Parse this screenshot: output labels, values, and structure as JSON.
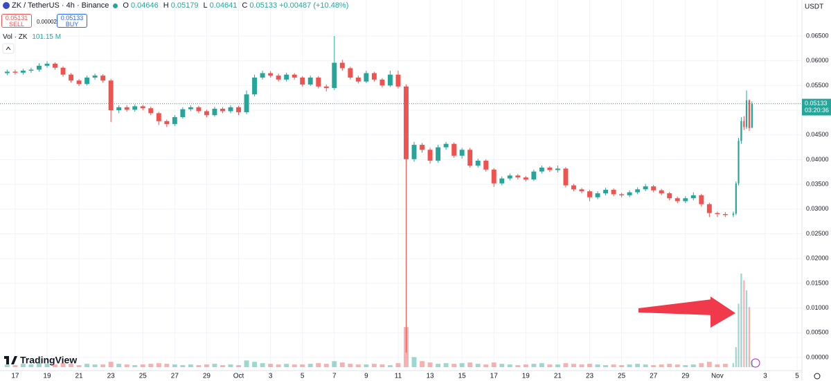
{
  "header": {
    "symbol": "ZK / TetherUS · 4h · Binance",
    "ohlc_labels": [
      "O",
      "H",
      "L",
      "C"
    ],
    "change": "+0.00487 (+10.48%)",
    "sell_price": 0.05131,
    "sell_label": "SELL",
    "spread": 2e-05,
    "buy_label": "BUY",
    "volume_label": "Vol · ZK",
    "volume_value": "101.15 M",
    "currency": "USDT",
    "countdown": "03:20:36",
    "logo": "TradingView"
  },
  "chart_data": {
    "type": "candlestick",
    "up_color": "#26a69a",
    "down_color": "#ef5350",
    "grid": true,
    "x": [
      -0.5,
      0,
      0.5,
      1,
      1.5,
      2,
      2.5,
      3,
      3.5,
      4,
      4.5,
      5,
      5.5,
      6,
      6.5,
      7,
      7.5,
      8,
      8.5,
      9,
      9.5,
      10,
      10.5,
      11,
      11.5,
      12,
      12.5,
      13,
      13.5,
      14,
      14.5,
      15,
      15.5,
      16,
      16.5,
      17,
      17.5,
      18,
      18.5,
      19,
      19.5,
      20,
      20.5,
      21,
      21.5,
      22,
      22.5,
      23,
      23.5,
      24,
      24.5,
      25,
      25.5,
      26,
      26.5,
      27,
      27.5,
      28,
      28.5,
      29,
      29.5,
      30,
      30.5,
      31,
      31.5,
      32,
      32.5,
      33,
      33.5,
      34,
      34.5,
      35,
      35.5,
      36,
      36.5,
      37,
      37.5,
      38,
      38.5,
      39,
      39.5,
      40,
      40.5,
      41,
      41.5,
      42,
      42.5,
      43,
      43.5,
      44,
      44.5,
      45,
      45.17,
      45.33,
      45.5,
      45.67,
      45.83,
      46,
      46.17
    ],
    "open": [
      0.0575,
      0.0578,
      0.0576,
      0.058,
      0.0582,
      0.059,
      0.0594,
      0.0586,
      0.0572,
      0.056,
      0.0553,
      0.0566,
      0.057,
      0.056,
      0.05,
      0.0506,
      0.0501,
      0.0508,
      0.0504,
      0.0494,
      0.0478,
      0.0472,
      0.0486,
      0.0502,
      0.0506,
      0.0498,
      0.049,
      0.0503,
      0.0498,
      0.0506,
      0.0496,
      0.0532,
      0.0566,
      0.0575,
      0.057,
      0.0562,
      0.0572,
      0.0566,
      0.0552,
      0.0566,
      0.0548,
      0.0545,
      0.0596,
      0.0585,
      0.0566,
      0.0558,
      0.0575,
      0.0562,
      0.055,
      0.0572,
      0.0548,
      0.0401,
      0.043,
      0.042,
      0.0398,
      0.0425,
      0.0432,
      0.0408,
      0.042,
      0.0388,
      0.0398,
      0.038,
      0.0352,
      0.0362,
      0.0368,
      0.0364,
      0.036,
      0.0376,
      0.0384,
      0.0379,
      0.0382,
      0.0348,
      0.034,
      0.0336,
      0.0324,
      0.0332,
      0.0339,
      0.033,
      0.0328,
      0.0334,
      0.034,
      0.0346,
      0.0338,
      0.0332,
      0.0322,
      0.0316,
      0.0322,
      0.0328,
      0.031,
      0.0292,
      0.029,
      0.0288,
      0.0291,
      0.0352,
      0.0438,
      0.0478,
      0.0466,
      0.052,
      0.04646
    ],
    "high": [
      0.0582,
      0.0582,
      0.0584,
      0.0586,
      0.0595,
      0.0599,
      0.0597,
      0.0589,
      0.0575,
      0.0563,
      0.057,
      0.0574,
      0.0573,
      0.0563,
      0.051,
      0.051,
      0.0512,
      0.0511,
      0.0507,
      0.0497,
      0.0481,
      0.049,
      0.0506,
      0.051,
      0.0509,
      0.0501,
      0.0507,
      0.0506,
      0.051,
      0.0509,
      0.054,
      0.0572,
      0.058,
      0.0579,
      0.0574,
      0.0576,
      0.0575,
      0.0569,
      0.057,
      0.0569,
      0.0552,
      0.065,
      0.0602,
      0.0588,
      0.057,
      0.058,
      0.0578,
      0.0565,
      0.058,
      0.058,
      0.0552,
      0.0436,
      0.0434,
      0.0424,
      0.043,
      0.0436,
      0.0435,
      0.0424,
      0.0424,
      0.0402,
      0.0401,
      0.0383,
      0.0366,
      0.0372,
      0.0371,
      0.0367,
      0.038,
      0.0388,
      0.0387,
      0.0388,
      0.0385,
      0.0351,
      0.0343,
      0.0339,
      0.0336,
      0.0343,
      0.0342,
      0.0333,
      0.0338,
      0.0344,
      0.0351,
      0.0349,
      0.0341,
      0.0335,
      0.0325,
      0.0326,
      0.0334,
      0.0331,
      0.0313,
      0.0295,
      0.0294,
      0.0295,
      0.0356,
      0.0444,
      0.0486,
      0.0488,
      0.054,
      0.0522,
      0.05179
    ],
    "low": [
      0.0571,
      0.0572,
      0.0572,
      0.0576,
      0.0578,
      0.0586,
      0.0582,
      0.0568,
      0.0556,
      0.0549,
      0.055,
      0.0562,
      0.0556,
      0.0476,
      0.0494,
      0.0497,
      0.0497,
      0.05,
      0.049,
      0.047,
      0.0466,
      0.0468,
      0.0483,
      0.0498,
      0.0494,
      0.0486,
      0.0487,
      0.0494,
      0.0494,
      0.049,
      0.0492,
      0.0528,
      0.0562,
      0.0566,
      0.0558,
      0.0558,
      0.0562,
      0.0548,
      0.0549,
      0.0544,
      0.0538,
      0.0541,
      0.058,
      0.0562,
      0.0554,
      0.0555,
      0.0558,
      0.0546,
      0.0547,
      0.0544,
      0.001,
      0.0396,
      0.0414,
      0.0392,
      0.0394,
      0.042,
      0.0404,
      0.0402,
      0.0384,
      0.0384,
      0.0376,
      0.0345,
      0.0348,
      0.0358,
      0.036,
      0.0356,
      0.0357,
      0.0372,
      0.0375,
      0.0374,
      0.0344,
      0.0336,
      0.0332,
      0.0316,
      0.032,
      0.0328,
      0.0326,
      0.0324,
      0.0324,
      0.033,
      0.0336,
      0.0334,
      0.0328,
      0.0318,
      0.0312,
      0.0312,
      0.0318,
      0.0305,
      0.0284,
      0.0284,
      0.0284,
      0.0284,
      0.0288,
      0.0348,
      0.0432,
      0.046,
      0.0462,
      0.0458,
      0.04641
    ],
    "close": [
      0.0578,
      0.0576,
      0.058,
      0.0582,
      0.059,
      0.0594,
      0.0586,
      0.0572,
      0.056,
      0.0553,
      0.0566,
      0.057,
      0.056,
      0.05,
      0.0506,
      0.0501,
      0.0508,
      0.0504,
      0.0494,
      0.0478,
      0.0472,
      0.0486,
      0.0502,
      0.0506,
      0.0498,
      0.049,
      0.0503,
      0.0498,
      0.0506,
      0.0496,
      0.0532,
      0.0566,
      0.0575,
      0.057,
      0.0562,
      0.0572,
      0.0566,
      0.0552,
      0.0566,
      0.0548,
      0.0545,
      0.0596,
      0.0585,
      0.0566,
      0.0558,
      0.0575,
      0.0562,
      0.055,
      0.0572,
      0.0548,
      0.0401,
      0.043,
      0.042,
      0.0398,
      0.0425,
      0.0432,
      0.0408,
      0.042,
      0.0388,
      0.0398,
      0.038,
      0.0352,
      0.0362,
      0.0368,
      0.0364,
      0.036,
      0.0376,
      0.0384,
      0.0379,
      0.0382,
      0.0348,
      0.034,
      0.0336,
      0.0324,
      0.0332,
      0.0339,
      0.033,
      0.0328,
      0.0334,
      0.034,
      0.0346,
      0.0338,
      0.0332,
      0.0322,
      0.0316,
      0.0322,
      0.0328,
      0.031,
      0.0292,
      0.029,
      0.0288,
      0.0291,
      0.0352,
      0.0438,
      0.0478,
      0.0466,
      0.052,
      0.0464,
      0.05133
    ],
    "volume": [
      4,
      3,
      5,
      4,
      6,
      5,
      4,
      6,
      5,
      3,
      5,
      4,
      4,
      8,
      5,
      4,
      3,
      4,
      5,
      6,
      5,
      4,
      3,
      4,
      3,
      4,
      5,
      3,
      4,
      3,
      10,
      8,
      6,
      5,
      4,
      5,
      4,
      4,
      5,
      6,
      5,
      9,
      7,
      5,
      4,
      4,
      5,
      4,
      3,
      6,
      60,
      15,
      9,
      7,
      5,
      6,
      5,
      6,
      7,
      5,
      4,
      7,
      5,
      4,
      3,
      4,
      5,
      6,
      4,
      4,
      6,
      5,
      4,
      5,
      4,
      3,
      4,
      3,
      4,
      5,
      4,
      3,
      4,
      5,
      4,
      3,
      4,
      6,
      8,
      4,
      5,
      6,
      30,
      95,
      140,
      130,
      115,
      90,
      9
    ],
    "xlim": [
      -0.95,
      49.3
    ],
    "xticks": [
      {
        "value": 0,
        "label": "17"
      },
      {
        "value": 2,
        "label": "19"
      },
      {
        "value": 4,
        "label": "21"
      },
      {
        "value": 6,
        "label": "23"
      },
      {
        "value": 8,
        "label": "25"
      },
      {
        "value": 10,
        "label": "27"
      },
      {
        "value": 12,
        "label": "29"
      },
      {
        "value": 14,
        "label": "Oct"
      },
      {
        "value": 16,
        "label": "3"
      },
      {
        "value": 18,
        "label": "5"
      },
      {
        "value": 20,
        "label": "7"
      },
      {
        "value": 22,
        "label": "9"
      },
      {
        "value": 24,
        "label": "11"
      },
      {
        "value": 26,
        "label": "13"
      },
      {
        "value": 28,
        "label": "15"
      },
      {
        "value": 30,
        "label": "17"
      },
      {
        "value": 32,
        "label": "19"
      },
      {
        "value": 34,
        "label": "21"
      },
      {
        "value": 36,
        "label": "23"
      },
      {
        "value": 38,
        "label": "25"
      },
      {
        "value": 40,
        "label": "27"
      },
      {
        "value": 42,
        "label": "29"
      },
      {
        "value": 44,
        "label": "Nov"
      },
      {
        "value": 47,
        "label": "3"
      },
      {
        "value": 49,
        "label": "5"
      }
    ],
    "ylim": [
      -0.00266,
      0.07229
    ],
    "yticks": [
      {
        "value": 0,
        "label": "0.00000"
      },
      {
        "value": 0.005,
        "label": "0.00500"
      },
      {
        "value": 0.01,
        "label": "0.01000"
      },
      {
        "value": 0.015,
        "label": "0.01500"
      },
      {
        "value": 0.02,
        "label": "0.02000"
      },
      {
        "value": 0.025,
        "label": "0.02500"
      },
      {
        "value": 0.03,
        "label": "0.03000"
      },
      {
        "value": 0.035,
        "label": "0.03500"
      },
      {
        "value": 0.04,
        "label": "0.04000"
      },
      {
        "value": 0.045,
        "label": "0.04500"
      },
      {
        "value": 0.05,
        "label": "0.05000"
      },
      {
        "value": 0.055,
        "label": "0.05500"
      },
      {
        "value": 0.06,
        "label": "0.06000"
      },
      {
        "value": 0.065,
        "label": "0.06500"
      }
    ]
  }
}
